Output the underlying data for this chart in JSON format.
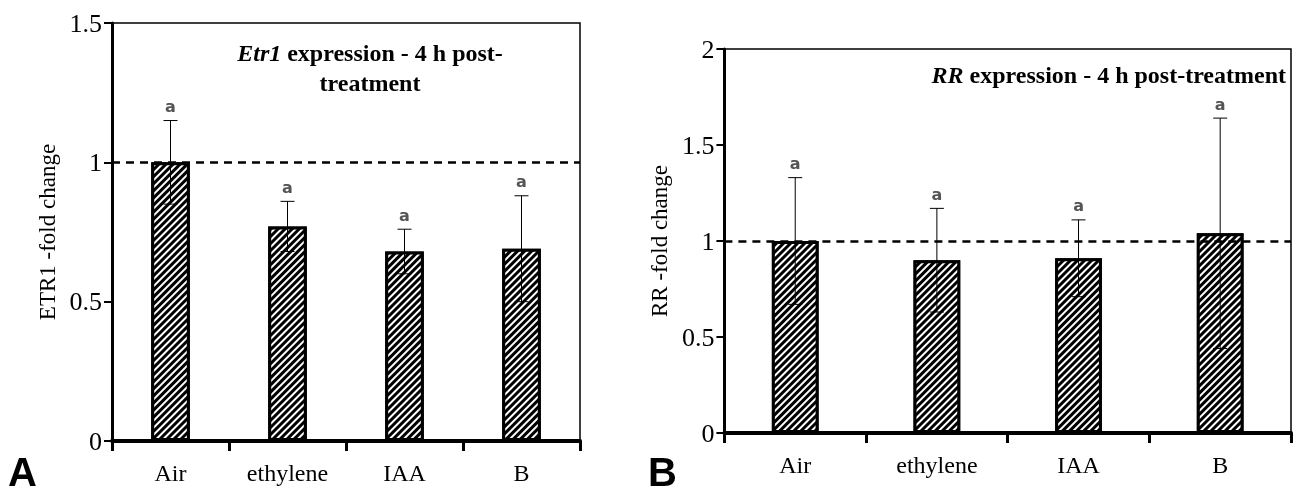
{
  "chart_data": [
    {
      "type": "bar",
      "title": "Etr1 expression - 4 h post-treatment",
      "ylabel": "ETR1 -fold change",
      "categories": [
        "Air",
        "ethylene",
        "IAA",
        "B"
      ],
      "values": [
        1.0,
        0.77,
        0.68,
        0.69
      ],
      "errors": [
        0.15,
        0.09,
        0.08,
        0.19
      ],
      "color": "#000000",
      "ylim": [
        0,
        1.5
      ],
      "yticks": [
        0,
        0.5,
        1,
        1.5
      ],
      "grid": false,
      "ref_lines": [
        {
          "axis": "y",
          "value": 1,
          "line_style": "dashed",
          "color": "#000000"
        }
      ],
      "annotations": [
        "a",
        "a",
        "a",
        "a",
        "A"
      ]
    },
    {
      "type": "bar",
      "title": "RR expression - 4 h post-treatment",
      "ylabel": "RR -fold change",
      "categories": [
        "Air",
        "ethylene",
        "IAA",
        "B"
      ],
      "values": [
        1.0,
        0.9,
        0.91,
        1.04
      ],
      "errors": [
        0.33,
        0.27,
        0.2,
        0.6
      ],
      "color": "#000000",
      "ylim": [
        0,
        2
      ],
      "yticks": [
        0,
        0.5,
        1,
        1.5,
        2
      ],
      "grid": false,
      "ref_lines": [
        {
          "axis": "y",
          "value": 1,
          "line_style": "dashed",
          "color": "#000000"
        }
      ],
      "annotations": [
        "a",
        "a",
        "a",
        "a",
        "B"
      ]
    }
  ]
}
